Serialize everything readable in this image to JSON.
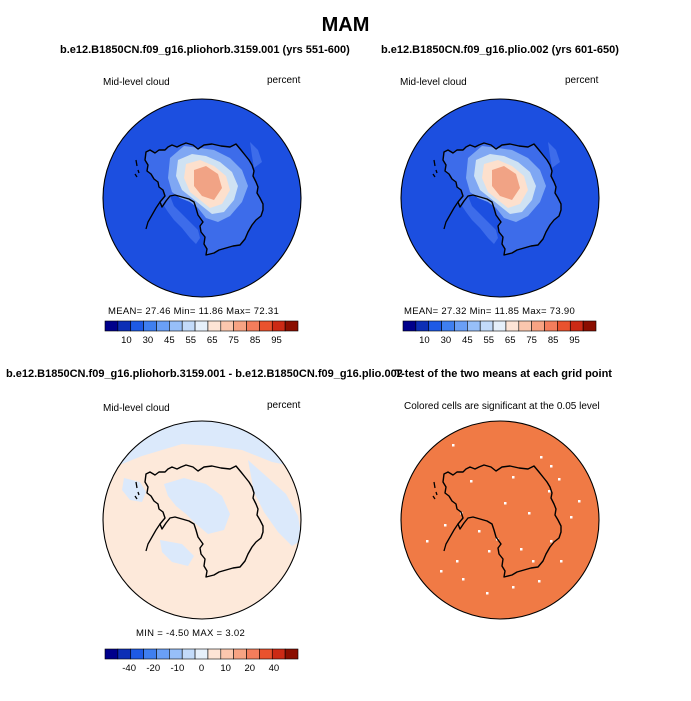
{
  "figure": {
    "title": "MAM"
  },
  "panels": [
    {
      "id": "case1",
      "title": "b.e12.B1850CN.f09_g16.pliohorb.3159.001 (yrs 551-600)",
      "left_label": "Mid-level cloud",
      "right_label": "percent",
      "stats_text": "MEAN=   27.46    Min=   11.86    Max=   72.31",
      "mean": 27.46,
      "min": 11.86,
      "max": 72.31,
      "colors": {
        "ocean": "#1c4fe0",
        "ice_shelf": "#3d6cea",
        "interior_low": "#cfe2f3",
        "interior_mid": "#fde0cd",
        "interior_high": "#f1a385"
      }
    },
    {
      "id": "case2",
      "title": "b.e12.B1850CN.f09_g16.plio.002 (yrs 601-650)",
      "left_label": "Mid-level cloud",
      "right_label": "percent",
      "stats_text": "MEAN=   27.32    Min=   11.85    Max=   73.90",
      "mean": 27.32,
      "min": 11.85,
      "max": 73.9,
      "colors": {
        "ocean": "#1c4fe0",
        "ice_shelf": "#3d6cea",
        "interior_low": "#cfe2f3",
        "interior_mid": "#fde0cd",
        "interior_high": "#f1a385"
      }
    },
    {
      "id": "difference",
      "title": "b.e12.B1850CN.f09_g16.pliohorb.3159.001 - b.e12.B1850CN.f09_g16.plio.002",
      "left_label": "Mid-level cloud",
      "right_label": "percent",
      "stats_text": "MIN =   -4.50  MAX =    3.02",
      "min": -4.5,
      "max": 3.02,
      "colors": {
        "positive": "#fde9da",
        "negative": "#dbe9fb"
      }
    },
    {
      "id": "ttest",
      "title": "T-test of the two means at each grid point",
      "subtitle": "Colored cells are significant at the 0.05 level",
      "colors": {
        "significant": "#f07a45",
        "not_significant": "#ffffff"
      }
    }
  ],
  "colorbars": {
    "absolute": {
      "tick_labels": [
        "10",
        "30",
        "45",
        "55",
        "65",
        "75",
        "85",
        "95"
      ],
      "colors": [
        "#00008b",
        "#0d2fb6",
        "#1e5ae5",
        "#3f7ff0",
        "#6a9ff5",
        "#97bff8",
        "#c3dbfa",
        "#e6f0fb",
        "#fde4d6",
        "#fbc7ae",
        "#f7a383",
        "#f37d5c",
        "#e9522e",
        "#cc2a15",
        "#8b0e00"
      ]
    },
    "difference": {
      "tick_labels": [
        "-40",
        "-20",
        "-10",
        "0",
        "10",
        "20",
        "40"
      ],
      "colors": [
        "#00008b",
        "#0d2fb6",
        "#1e5ae5",
        "#3f7ff0",
        "#6a9ff5",
        "#97bff8",
        "#c3dbfa",
        "#e6f0fb",
        "#fde4d6",
        "#fbc7ae",
        "#f7a383",
        "#f37d5c",
        "#e9522e",
        "#cc2a15",
        "#8b0e00"
      ]
    }
  },
  "chart_data": [
    {
      "type": "heatmap",
      "title": "b.e12.B1850CN.f09_g16.pliohorb.3159.001 (yrs 551-600)",
      "variable": "Mid-level cloud",
      "units": "percent",
      "projection": "polar-stereographic (south)",
      "statistics": {
        "mean": 27.46,
        "min": 11.86,
        "max": 72.31
      },
      "contour_levels": [
        10,
        15,
        20,
        25,
        30,
        35,
        40,
        45,
        50,
        55,
        60,
        65,
        70,
        75,
        80,
        85,
        90,
        95
      ]
    },
    {
      "type": "heatmap",
      "title": "b.e12.B1850CN.f09_g16.plio.002 (yrs 601-650)",
      "variable": "Mid-level cloud",
      "units": "percent",
      "projection": "polar-stereographic (south)",
      "statistics": {
        "mean": 27.32,
        "min": 11.85,
        "max": 73.9
      },
      "contour_levels": [
        10,
        15,
        20,
        25,
        30,
        35,
        40,
        45,
        50,
        55,
        60,
        65,
        70,
        75,
        80,
        85,
        90,
        95
      ]
    },
    {
      "type": "heatmap",
      "title": "b.e12.B1850CN.f09_g16.pliohorb.3159.001 - b.e12.B1850CN.f09_g16.plio.002",
      "variable": "Mid-level cloud",
      "units": "percent",
      "projection": "polar-stereographic (south)",
      "statistics": {
        "min": -4.5,
        "max": 3.02
      },
      "contour_levels": [
        -40,
        -30,
        -20,
        -15,
        -10,
        -5,
        0,
        5,
        10,
        15,
        20,
        30,
        40
      ]
    },
    {
      "type": "heatmap",
      "title": "T-test of the two means at each grid point",
      "subtitle": "Colored cells are significant at the 0.05 level",
      "projection": "polar-stereographic (south)",
      "significance_level": 0.05
    }
  ]
}
